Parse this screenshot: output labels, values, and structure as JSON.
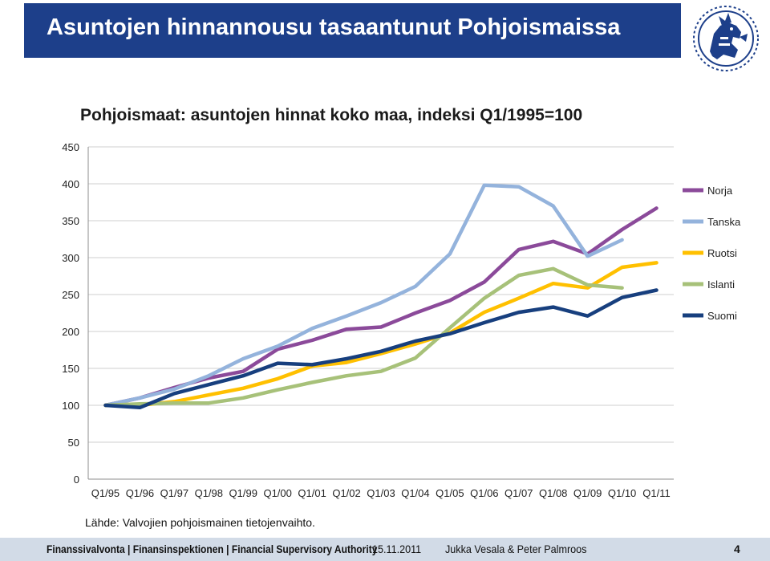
{
  "slide": {
    "title": "Asuntojen hinnannousu tasaantunut Pohjoismaissa",
    "source": "Lähde: Valvojien  pohjoismainen tietojenvaihto.",
    "footer": {
      "org": "Finanssivalvonta | Finansinspektionen | Financial Supervisory Authority",
      "date": "15.11.2011",
      "authors": "Jukka Vesala & Peter Palmroos",
      "page": "4"
    },
    "colors": {
      "header_bg": "#1d3f8a",
      "footer_bg": "#d2dbe7"
    }
  },
  "chart_data": {
    "type": "line",
    "title": "Pohjoismaat: asuntojen hinnat koko maa, indeksi Q1/1995=100",
    "xlabel": "",
    "ylabel": "",
    "ylim": [
      0,
      450
    ],
    "yticks": [
      0,
      50,
      100,
      150,
      200,
      250,
      300,
      350,
      400,
      450
    ],
    "grid": true,
    "legend_position": "right",
    "x": [
      "Q1/95",
      "Q1/96",
      "Q1/97",
      "Q1/98",
      "Q1/99",
      "Q1/00",
      "Q1/01",
      "Q1/02",
      "Q1/03",
      "Q1/04",
      "Q1/05",
      "Q1/06",
      "Q1/07",
      "Q1/08",
      "Q1/09",
      "Q1/10",
      "Q1/11"
    ],
    "series": [
      {
        "name": "Norja",
        "color": "#8b4a9a",
        "values": [
          100,
          110,
          124,
          137,
          146,
          176,
          188,
          203,
          206,
          225,
          242,
          267,
          311,
          322,
          305,
          338,
          367
        ]
      },
      {
        "name": "Tanska",
        "color": "#94b3dc",
        "values": [
          100,
          110,
          122,
          140,
          163,
          180,
          204,
          221,
          239,
          261,
          305,
          398,
          396,
          370,
          302,
          324,
          null
        ]
      },
      {
        "name": "Ruotsi",
        "color": "#ffc000",
        "values": [
          100,
          100,
          105,
          114,
          123,
          136,
          153,
          158,
          170,
          183,
          198,
          226,
          245,
          265,
          259,
          287,
          293
        ]
      },
      {
        "name": "Islanti",
        "color": "#a7c179",
        "values": [
          100,
          102,
          103,
          103,
          110,
          121,
          131,
          140,
          146,
          164,
          205,
          245,
          276,
          285,
          263,
          259,
          null
        ]
      },
      {
        "name": "Suomi",
        "color": "#173f7e",
        "values": [
          100,
          97,
          116,
          128,
          140,
          157,
          155,
          163,
          173,
          187,
          197,
          212,
          226,
          233,
          221,
          246,
          256
        ]
      }
    ]
  }
}
